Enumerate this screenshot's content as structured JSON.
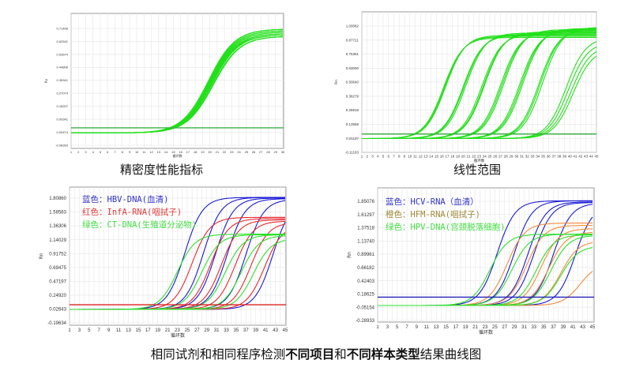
{
  "captions": {
    "precision": "精密度性能指标",
    "linearity": "线性范围",
    "bottom_parts": [
      {
        "text": "相同试剂和相同程序检测",
        "bold": false
      },
      {
        "text": "不同项目",
        "bold": true
      },
      {
        "text": "和",
        "bold": false
      },
      {
        "text": "不同样本类型",
        "bold": true
      },
      {
        "text": "结果曲线图",
        "bold": false
      }
    ]
  },
  "chart_data": [
    {
      "type": "line",
      "ylabel": "Rn",
      "xlabel": "循环数",
      "x_ticks": [
        1,
        2,
        3,
        4,
        5,
        6,
        7,
        8,
        9,
        10,
        11,
        12,
        13,
        14,
        15,
        16,
        17,
        18,
        19,
        20,
        21,
        22,
        23,
        24,
        25,
        26,
        27,
        28,
        29,
        30
      ],
      "y_ticks": [
        "0.71408",
        "0.62541",
        "0.53674",
        "0.44808",
        "0.35941",
        "0.27074",
        "0.18207",
        "0.09341",
        "0.00474",
        "-0.08393"
      ],
      "ylim": [
        -0.08393,
        0.71408
      ],
      "xlim": [
        1,
        30
      ],
      "grid": true,
      "threshold": {
        "value": 0.035,
        "color": "#3cb043"
      },
      "baseline": 0.0,
      "series": [
        {
          "color": "#22e01a",
          "midpoints": [
            19.8,
            19.9,
            20.0,
            20.0,
            20.1,
            20.1,
            20.2,
            20.2,
            20.3,
            20.4,
            20.5,
            20.0,
            19.9,
            20.3
          ],
          "plateaus": [
            0.71,
            0.7,
            0.7,
            0.69,
            0.69,
            0.68,
            0.68,
            0.67,
            0.67,
            0.66,
            0.66,
            0.7,
            0.71,
            0.68
          ]
        }
      ]
    },
    {
      "type": "line",
      "ylabel": "Rn",
      "xlabel": "循环数",
      "x_ticks": [
        1,
        2,
        3,
        4,
        5,
        6,
        7,
        8,
        9,
        10,
        11,
        12,
        13,
        14,
        15,
        16,
        17,
        18,
        19,
        20,
        21,
        22,
        23,
        24,
        25,
        26,
        27,
        28,
        29,
        30,
        31,
        32,
        33,
        34,
        35,
        36,
        37,
        38,
        39,
        40,
        41,
        42,
        43,
        44,
        45
      ],
      "y_ticks": [
        "1.00082",
        "0.87721",
        "0.75361",
        "0.63000",
        "0.50640",
        "0.38279",
        "0.25918",
        "0.13558",
        "0.01197",
        "-0.11163"
      ],
      "ylim": [
        -0.11163,
        1.00082
      ],
      "xlim": [
        1,
        45
      ],
      "grid": true,
      "threshold": {
        "value": 0.05,
        "color": "#3cb043"
      },
      "baseline": 0.01,
      "series": [
        {
          "color": "#22e01a",
          "midpoints": [
            16.3,
            16.5,
            16.7,
            20.0,
            20.2,
            20.5,
            23.5,
            23.8,
            24.0,
            27.0,
            27.3,
            27.6,
            30.6,
            30.9,
            31.2,
            34.2,
            34.5,
            34.9,
            39.3,
            39.7,
            40.2,
            40.6
          ],
          "plateaus": [
            0.9,
            0.91,
            0.92,
            0.92,
            0.93,
            0.94,
            0.93,
            0.94,
            0.95,
            0.95,
            0.96,
            0.97,
            0.96,
            0.97,
            0.98,
            0.97,
            0.98,
            0.99,
            0.9,
            0.86,
            0.83,
            0.8
          ]
        }
      ]
    },
    {
      "type": "line",
      "ylabel": "Rn",
      "xlabel": "循环数",
      "x_ticks": [
        1,
        3,
        5,
        7,
        9,
        11,
        13,
        15,
        17,
        19,
        21,
        23,
        25,
        27,
        29,
        31,
        33,
        35,
        37,
        39,
        41,
        43,
        45
      ],
      "y_ticks": [
        "1.80860",
        "1.58583",
        "1.36306",
        "1.14029",
        "0.91752",
        "0.69475",
        "0.47197",
        "0.24920",
        "0.02643",
        "-0.19634"
      ],
      "ylim": [
        -0.19634,
        1.8086
      ],
      "xlim": [
        1,
        45
      ],
      "grid": true,
      "threshold": {
        "value": 0.095,
        "color": "#dd2222"
      },
      "baseline": 0.02,
      "legend": [
        {
          "text": "蓝色：HBV-DNA(血清)",
          "color": "#3333cc"
        },
        {
          "text": "红色：InfA-RNA(咽拭子)",
          "color": "#e23a3a"
        },
        {
          "text": "绿色：CT-DNA(生殖道分泌物)",
          "color": "#44dd44"
        }
      ],
      "series": [
        {
          "name": "HBV-DNA",
          "color": "#1a1ad6",
          "midpoints": [
            24.5,
            28.3,
            30.8,
            33.2,
            37.0,
            42.5
          ],
          "plateaus": [
            1.82,
            1.82,
            1.81,
            1.8,
            1.79,
            1.78
          ]
        },
        {
          "name": "InfA-RNA",
          "color": "#e8282e",
          "midpoints": [
            26.0,
            29.8,
            32.0,
            34.8,
            38.0,
            40.8
          ],
          "plateaus": [
            1.5,
            1.48,
            1.46,
            1.44,
            1.42,
            1.38
          ]
        },
        {
          "name": "CT-DNA",
          "color": "#2ee02e",
          "midpoints": [
            23.0,
            28.0,
            32.8,
            36.0,
            38.5
          ],
          "plateaus": [
            1.23,
            1.22,
            1.22,
            1.21,
            1.16
          ]
        }
      ]
    },
    {
      "type": "line",
      "ylabel": "Rn",
      "xlabel": "循环数",
      "x_ticks": [
        1,
        3,
        5,
        7,
        9,
        11,
        13,
        15,
        17,
        19,
        21,
        23,
        25,
        27,
        29,
        31,
        33,
        35,
        37,
        39,
        41,
        43,
        45
      ],
      "y_ticks": [
        "1.85076",
        "1.61297",
        "1.37518",
        "1.13740",
        "0.89961",
        "0.66182",
        "0.42403",
        "0.18625",
        "-0.05154",
        "-0.28933"
      ],
      "ylim": [
        -0.28933,
        1.85076
      ],
      "xlim": [
        1,
        45
      ],
      "grid": true,
      "threshold": {
        "value": 0.13,
        "color": "#2222bb"
      },
      "baseline": -0.02,
      "legend": [
        {
          "text": "蓝色：HCV-RNA（血清）",
          "color": "#3333cc"
        },
        {
          "text": "橙色：HFM-RNA(咽拭子)",
          "color": "#a08a3a"
        },
        {
          "text": "绿色：HPV-DNA(宫颈脱落细胞)",
          "color": "#44dd44"
        }
      ],
      "series": [
        {
          "name": "HCV-RNA",
          "color": "#1a1ad6",
          "midpoints": [
            25.5,
            29.0,
            31.8,
            33.0,
            37.0,
            41.5
          ],
          "plateaus": [
            1.86,
            1.86,
            1.84,
            1.83,
            1.82,
            1.8
          ]
        },
        {
          "name": "HFM-RNA",
          "color": "#f28c3a",
          "midpoints": [
            27.5,
            31.5,
            34.5,
            36.0,
            38.5,
            42.5
          ],
          "plateaus": [
            1.46,
            1.42,
            1.36,
            1.3,
            1.14,
            0.75
          ]
        },
        {
          "name": "HPV-DNA",
          "color": "#2ee02e",
          "midpoints": [
            24.0,
            28.5,
            33.5,
            36.5,
            38.5
          ],
          "plateaus": [
            1.26,
            1.26,
            1.25,
            1.24,
            1.05
          ]
        }
      ]
    }
  ]
}
